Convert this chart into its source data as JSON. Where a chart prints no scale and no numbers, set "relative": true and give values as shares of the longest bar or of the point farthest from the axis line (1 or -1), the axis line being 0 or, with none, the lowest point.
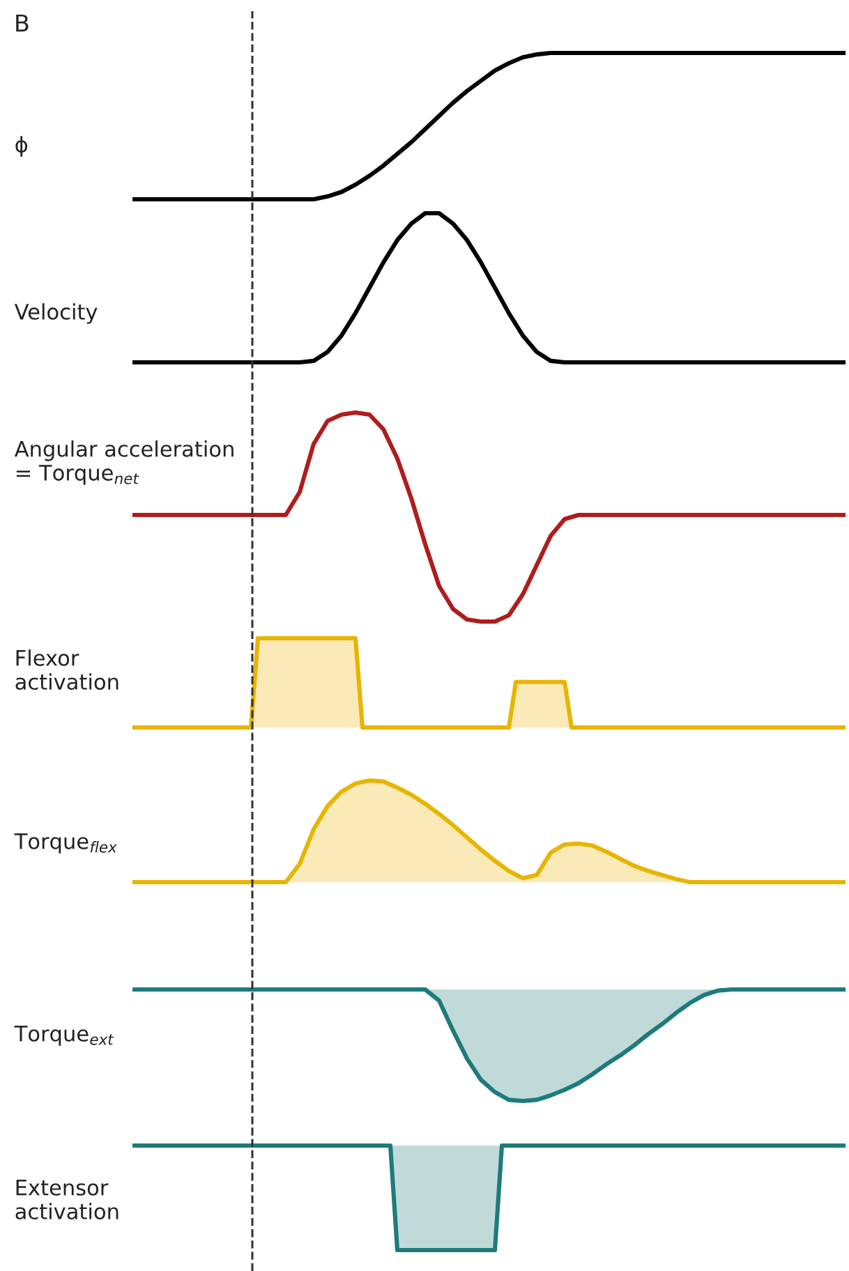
{
  "chart_data": [
    {
      "type": "line",
      "title": "B",
      "ylabel": "ϕ",
      "relative": true,
      "categories": [
        null,
        null,
        null,
        null,
        null,
        null,
        null,
        null,
        null,
        null,
        null,
        null,
        null,
        null,
        null,
        null,
        null,
        null,
        null,
        null,
        null,
        null,
        null,
        null,
        null,
        null,
        null,
        null,
        null,
        null,
        null,
        null,
        null,
        null,
        null,
        null,
        null,
        null,
        null,
        null,
        null,
        null,
        null,
        null,
        null,
        null,
        null,
        null,
        null,
        null,
        null,
        null
      ],
      "series": [
        {
          "color": "#000000",
          "values": [
            0,
            0,
            0,
            0,
            0,
            0,
            0,
            0,
            0,
            0,
            0,
            0,
            0,
            0,
            0.02,
            0.05,
            0.1,
            0.16,
            0.23,
            0.31,
            0.39,
            0.48,
            0.57,
            0.66,
            0.74,
            0.81,
            0.88,
            0.93,
            0.97,
            0.99,
            1,
            1,
            1,
            1,
            1,
            1,
            1,
            1,
            1,
            1,
            1,
            1,
            1,
            1,
            1,
            1,
            1,
            1,
            1,
            1,
            1,
            1
          ]
        }
      ]
    },
    {
      "type": "line",
      "ylabel": "Velocity",
      "relative": true,
      "categories": [
        null,
        null,
        null,
        null,
        null,
        null,
        null,
        null,
        null,
        null,
        null,
        null,
        null,
        null,
        null,
        null,
        null,
        null,
        null,
        null,
        null,
        null,
        null,
        null,
        null,
        null,
        null,
        null,
        null,
        null,
        null,
        null,
        null,
        null,
        null,
        null,
        null,
        null,
        null,
        null,
        null,
        null,
        null,
        null,
        null,
        null,
        null,
        null,
        null,
        null,
        null,
        null
      ],
      "series": [
        {
          "color": "#000000",
          "values": [
            0,
            0,
            0,
            0,
            0,
            0,
            0,
            0,
            0,
            0,
            0,
            0,
            0,
            0.01,
            0.07,
            0.18,
            0.33,
            0.5,
            0.67,
            0.82,
            0.93,
            1,
            1,
            0.93,
            0.82,
            0.67,
            0.5,
            0.33,
            0.18,
            0.07,
            0.01,
            0,
            0,
            0,
            0,
            0,
            0,
            0,
            0,
            0,
            0,
            0,
            0,
            0,
            0,
            0,
            0,
            0,
            0,
            0,
            0,
            0
          ]
        }
      ]
    },
    {
      "type": "line",
      "ylabel": "Angular acceleration\n= Torque$_{net}$",
      "relative": true,
      "categories": [
        null,
        null,
        null,
        null,
        null,
        null,
        null,
        null,
        null,
        null,
        null,
        null,
        null,
        null,
        null,
        null,
        null,
        null,
        null,
        null,
        null,
        null,
        null,
        null,
        null,
        null,
        null,
        null,
        null,
        null,
        null,
        null,
        null,
        null,
        null,
        null,
        null,
        null,
        null,
        null,
        null,
        null,
        null,
        null,
        null,
        null,
        null,
        null,
        null,
        null,
        null,
        null
      ],
      "series": [
        {
          "color": "#b01c1c",
          "values": [
            0.51,
            0.51,
            0.51,
            0.51,
            0.51,
            0.51,
            0.51,
            0.51,
            0.51,
            0.51,
            0.51,
            0.51,
            0.62,
            0.85,
            0.96,
            0.99,
            1,
            0.99,
            0.92,
            0.78,
            0.59,
            0.37,
            0.17,
            0.06,
            0.01,
            0,
            0,
            0.03,
            0.13,
            0.27,
            0.41,
            0.49,
            0.51,
            0.51,
            0.51,
            0.51,
            0.51,
            0.51,
            0.51,
            0.51,
            0.51,
            0.51,
            0.51,
            0.51,
            0.51,
            0.51,
            0.51,
            0.51,
            0.51,
            0.51,
            0.51,
            0.51
          ]
        }
      ]
    },
    {
      "type": "area",
      "ylabel": "Flexor\nactivation",
      "relative": true,
      "categories": [
        null,
        null,
        null,
        null,
        null,
        null,
        null,
        null,
        null,
        null,
        null,
        null,
        null,
        null,
        null,
        null,
        null,
        null,
        null,
        null,
        null,
        null,
        null,
        null,
        null,
        null,
        null,
        null,
        null,
        null,
        null,
        null,
        null,
        null,
        null,
        null,
        null,
        null,
        null,
        null,
        null,
        null,
        null,
        null,
        null,
        null,
        null,
        null,
        null,
        null,
        null,
        null,
        null,
        null,
        null,
        null,
        null,
        null,
        null,
        null,
        null,
        null,
        null,
        null,
        null,
        null,
        null,
        null,
        null,
        null,
        null,
        null,
        null,
        null,
        null,
        null,
        null,
        null,
        null,
        null,
        null,
        null,
        null,
        null,
        null,
        null,
        null,
        null,
        null,
        null,
        null,
        null,
        null,
        null,
        null,
        null,
        null,
        null,
        null,
        null,
        null,
        null,
        null
      ],
      "series": [
        {
          "color": "#e8b400",
          "values": [
            0,
            0,
            0,
            0,
            0,
            0,
            0,
            0,
            0,
            0,
            0,
            0,
            0,
            0,
            0,
            0,
            0,
            0,
            1,
            1,
            1,
            1,
            1,
            1,
            1,
            1,
            1,
            1,
            1,
            1,
            1,
            1,
            1,
            0,
            0,
            0,
            0,
            0,
            0,
            0,
            0,
            0,
            0,
            0,
            0,
            0,
            0,
            0,
            0,
            0,
            0,
            0,
            0,
            0,
            0,
            0.51,
            0.51,
            0.51,
            0.51,
            0.51,
            0.51,
            0.51,
            0.51,
            0,
            0,
            0,
            0,
            0,
            0,
            0,
            0,
            0,
            0,
            0,
            0,
            0,
            0,
            0,
            0,
            0,
            0,
            0,
            0,
            0,
            0,
            0,
            0,
            0,
            0,
            0,
            0,
            0,
            0,
            0,
            0,
            0,
            0,
            0,
            0,
            0,
            0,
            0,
            0
          ]
        }
      ]
    },
    {
      "type": "area",
      "ylabel": "Torque$_{flex}$",
      "relative": true,
      "categories": [
        null,
        null,
        null,
        null,
        null,
        null,
        null,
        null,
        null,
        null,
        null,
        null,
        null,
        null,
        null,
        null,
        null,
        null,
        null,
        null,
        null,
        null,
        null,
        null,
        null,
        null,
        null,
        null,
        null,
        null,
        null,
        null,
        null,
        null,
        null,
        null,
        null,
        null,
        null,
        null,
        null,
        null,
        null,
        null,
        null,
        null,
        null,
        null,
        null,
        null,
        null,
        null
      ],
      "series": [
        {
          "color": "#e8b400",
          "values": [
            0,
            0,
            0,
            0,
            0,
            0,
            0,
            0,
            0,
            0,
            0,
            0,
            0.18,
            0.52,
            0.75,
            0.89,
            0.97,
            1,
            0.99,
            0.93,
            0.86,
            0.77,
            0.67,
            0.56,
            0.44,
            0.32,
            0.21,
            0.11,
            0.04,
            0.07,
            0.29,
            0.37,
            0.38,
            0.36,
            0.3,
            0.23,
            0.16,
            0.11,
            0.07,
            0.03,
            0,
            0,
            0,
            0,
            0,
            0,
            0,
            0,
            0,
            0,
            0,
            0
          ]
        }
      ]
    },
    {
      "type": "line",
      "ylabel": "Torque$_{ext}$",
      "relative": true,
      "categories": [
        null,
        null,
        null,
        null,
        null,
        null,
        null,
        null,
        null,
        null,
        null,
        null,
        null,
        null,
        null,
        null,
        null,
        null,
        null,
        null,
        null,
        null,
        null,
        null,
        null,
        null,
        null,
        null,
        null,
        null,
        null,
        null,
        null,
        null,
        null,
        null,
        null,
        null,
        null,
        null,
        null,
        null,
        null,
        null,
        null,
        null,
        null,
        null,
        null,
        null,
        null,
        null
      ],
      "series": [
        {
          "color": "#1e7b7b",
          "values": [
            1,
            1,
            1,
            1,
            1,
            1,
            1,
            1,
            1,
            1,
            1,
            1,
            1,
            1,
            1,
            1,
            1,
            1,
            1,
            1,
            1,
            1,
            0.9,
            0.63,
            0.38,
            0.19,
            0.08,
            0.01,
            0,
            0.01,
            0.05,
            0.1,
            0.16,
            0.24,
            0.33,
            0.41,
            0.5,
            0.6,
            0.69,
            0.79,
            0.88,
            0.95,
            0.99,
            1,
            1,
            1,
            1,
            1,
            1,
            1,
            1,
            1
          ],
          "lower": [
            1,
            1,
            1,
            1,
            1,
            1,
            1,
            1,
            1,
            1,
            1,
            1,
            1,
            1,
            1,
            1,
            1,
            1,
            1,
            1,
            1,
            1,
            0.9,
            0.63,
            0.38,
            0.19,
            0.08,
            0.01,
            0,
            0.01,
            0.05,
            0.1,
            0.16,
            0.24,
            0.33,
            0.41,
            0.5,
            0.6,
            0.69,
            0.79,
            0.88,
            0.95,
            0.99,
            1,
            1,
            1,
            1,
            1,
            1,
            1,
            1,
            1
          ],
          "upper": [
            1,
            1,
            1,
            1,
            1,
            1,
            1,
            1,
            1,
            1,
            1,
            1,
            1,
            1,
            1,
            1,
            1,
            1,
            1,
            1,
            1,
            1,
            1,
            1,
            1,
            1,
            1,
            1,
            1,
            1,
            1,
            1,
            1,
            1,
            1,
            1,
            1,
            1,
            1,
            1,
            1,
            1,
            1,
            1,
            1,
            1,
            1,
            1,
            1,
            1,
            1,
            1
          ]
        }
      ]
    },
    {
      "type": "line",
      "ylabel": "Extensor\nactivation",
      "relative": true,
      "categories": [
        null,
        null,
        null,
        null,
        null,
        null,
        null,
        null,
        null,
        null,
        null,
        null,
        null,
        null,
        null,
        null,
        null,
        null,
        null,
        null,
        null,
        null,
        null,
        null,
        null,
        null,
        null,
        null,
        null,
        null,
        null,
        null,
        null,
        null,
        null,
        null,
        null,
        null,
        null,
        null,
        null,
        null,
        null,
        null,
        null,
        null,
        null,
        null,
        null,
        null,
        null,
        null,
        null,
        null,
        null,
        null,
        null,
        null,
        null,
        null,
        null,
        null,
        null,
        null,
        null,
        null,
        null,
        null,
        null,
        null,
        null,
        null,
        null,
        null,
        null,
        null,
        null,
        null,
        null,
        null,
        null,
        null,
        null,
        null,
        null,
        null,
        null,
        null,
        null,
        null,
        null,
        null,
        null,
        null,
        null,
        null,
        null,
        null,
        null,
        null,
        null,
        null,
        null
      ],
      "series": [
        {
          "color": "#1e7b7b",
          "values": [
            1,
            1,
            1,
            1,
            1,
            1,
            1,
            1,
            1,
            1,
            1,
            1,
            1,
            1,
            1,
            1,
            1,
            1,
            1,
            1,
            1,
            1,
            1,
            1,
            1,
            1,
            1,
            1,
            1,
            1,
            1,
            1,
            1,
            1,
            1,
            1,
            1,
            1,
            0,
            0,
            0,
            0,
            0,
            0,
            0,
            0,
            0,
            0,
            0,
            0,
            0,
            0,
            0,
            1,
            1,
            1,
            1,
            1,
            1,
            1,
            1,
            1,
            1,
            1,
            1,
            1,
            1,
            1,
            1,
            1,
            1,
            1,
            1,
            1,
            1,
            1,
            1,
            1,
            1,
            1,
            1,
            1,
            1,
            1,
            1,
            1,
            1,
            1,
            1,
            1,
            1,
            1,
            1,
            1,
            1,
            1,
            1,
            1,
            1,
            1,
            1,
            1,
            1
          ],
          "lower": [
            1,
            1,
            1,
            1,
            1,
            1,
            1,
            1,
            1,
            1,
            1,
            1,
            1,
            1,
            1,
            1,
            1,
            1,
            1,
            1,
            1,
            1,
            1,
            1,
            1,
            1,
            1,
            1,
            1,
            1,
            1,
            1,
            1,
            1,
            1,
            1,
            1,
            1,
            0,
            0,
            0,
            0,
            0,
            0,
            0,
            0,
            0,
            0,
            0,
            0,
            0,
            0,
            0,
            1,
            1,
            1,
            1,
            1,
            1,
            1,
            1,
            1,
            1,
            1,
            1,
            1,
            1,
            1,
            1,
            1,
            1,
            1,
            1,
            1,
            1,
            1,
            1,
            1,
            1,
            1,
            1,
            1,
            1,
            1,
            1,
            1,
            1,
            1,
            1,
            1,
            1,
            1,
            1,
            1,
            1,
            1,
            1,
            1,
            1,
            1,
            1,
            1,
            1
          ],
          "upper": [
            1,
            1,
            1,
            1,
            1,
            1,
            1,
            1,
            1,
            1,
            1,
            1,
            1,
            1,
            1,
            1,
            1,
            1,
            1,
            1,
            1,
            1,
            1,
            1,
            1,
            1,
            1,
            1,
            1,
            1,
            1,
            1,
            1,
            1,
            1,
            1,
            1,
            1,
            1,
            1,
            1,
            1,
            1,
            1,
            1,
            1,
            1,
            1,
            1,
            1,
            1,
            1,
            1,
            1,
            1,
            1,
            1,
            1,
            1,
            1,
            1,
            1,
            1,
            1,
            1,
            1,
            1,
            1,
            1,
            1,
            1,
            1,
            1,
            1,
            1,
            1,
            1,
            1,
            1,
            1,
            1,
            1,
            1,
            1,
            1,
            1,
            1,
            1,
            1,
            1,
            1,
            1,
            1,
            1,
            1,
            1,
            1,
            1,
            1,
            1,
            1,
            1,
            1
          ]
        }
      ]
    }
  ]
}
